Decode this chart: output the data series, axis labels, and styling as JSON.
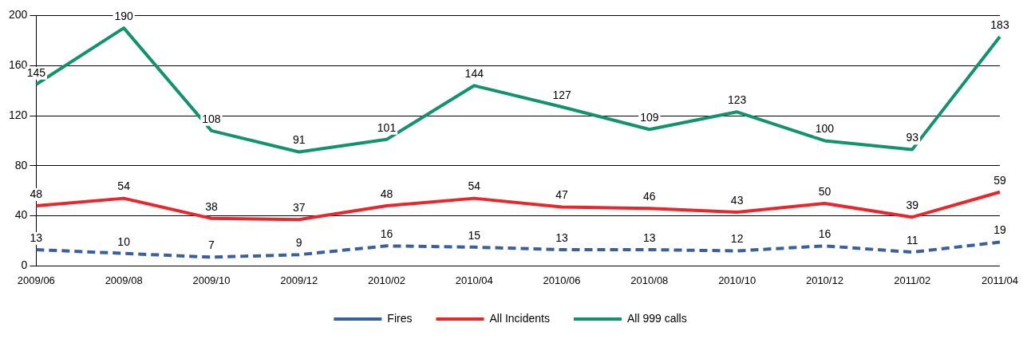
{
  "chart_data": {
    "type": "line",
    "categories": [
      "2009/06",
      "2009/08",
      "2009/10",
      "2009/12",
      "2010/02",
      "2010/04",
      "2010/06",
      "2010/08",
      "2010/10",
      "2010/12",
      "2011/02",
      "2011/04"
    ],
    "series": [
      {
        "name": "Fires",
        "color": "#3a5f9b",
        "line_style": "dashed",
        "values": [
          13,
          10,
          7,
          9,
          16,
          15,
          13,
          13,
          12,
          16,
          11,
          19
        ]
      },
      {
        "name": "All Incidents",
        "color": "#e8262b",
        "line_style": "solid",
        "values": [
          48,
          54,
          38,
          37,
          48,
          54,
          47,
          46,
          43,
          50,
          39,
          59
        ]
      },
      {
        "name": "All 999 calls",
        "color": "#12926d",
        "line_style": "solid",
        "values": [
          145,
          190,
          108,
          91,
          101,
          144,
          127,
          109,
          123,
          100,
          93,
          183
        ]
      }
    ],
    "ylim": [
      0,
      200
    ],
    "yticks": [
      0,
      40,
      80,
      120,
      160,
      200
    ],
    "grid": "y",
    "legend": "bottom",
    "data_labels": true,
    "marker": "none"
  }
}
